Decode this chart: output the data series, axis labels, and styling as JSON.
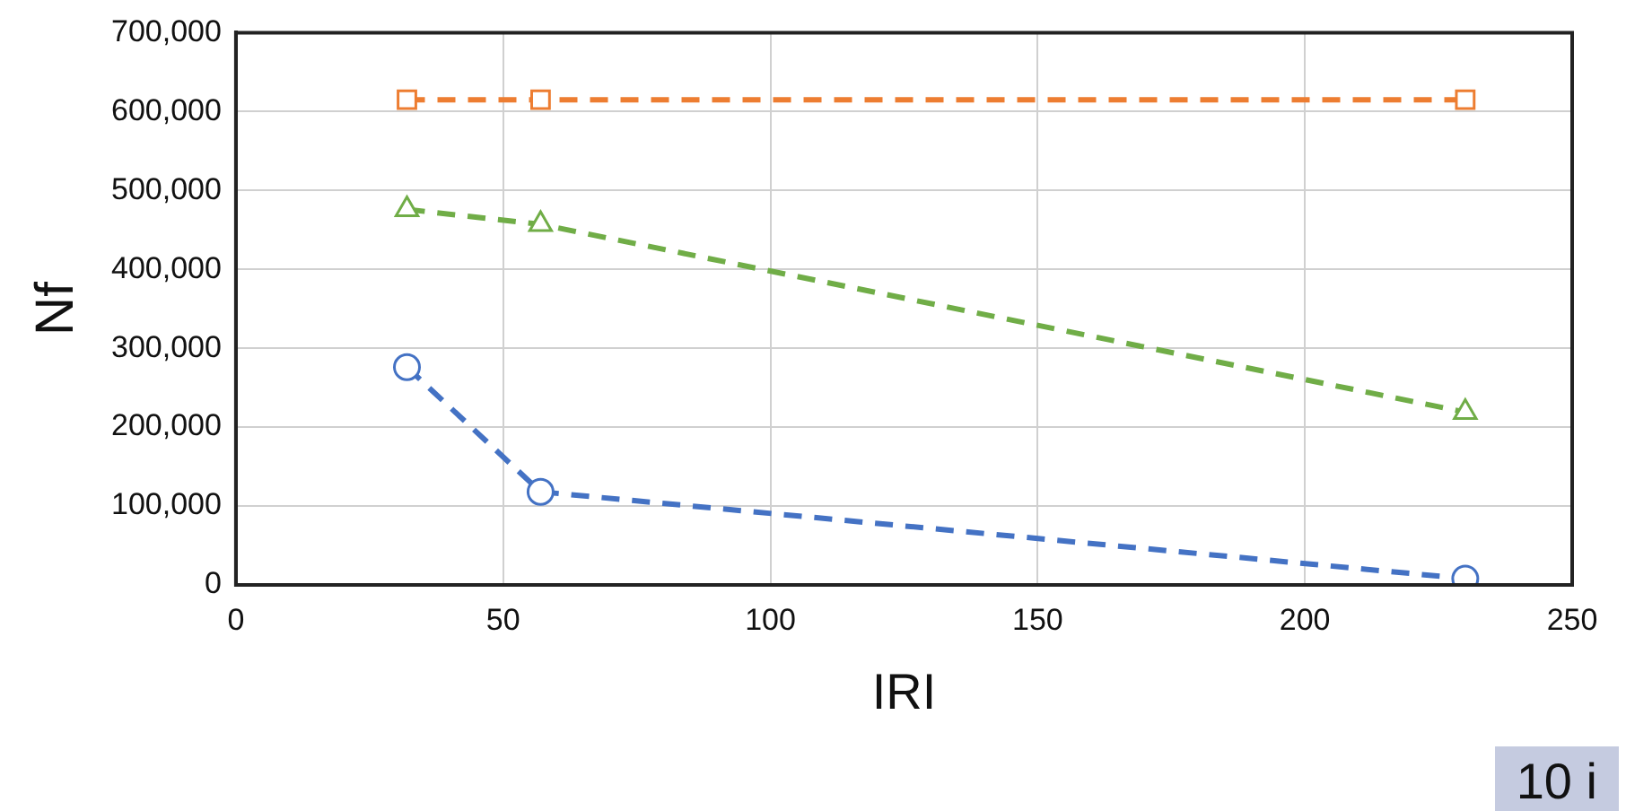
{
  "chart_data": {
    "type": "line",
    "xlabel": "IRI",
    "ylabel": "Nf",
    "xlim": [
      0,
      250
    ],
    "xticks": [
      0,
      50,
      100,
      150,
      200,
      250
    ],
    "ylim": [
      0,
      700000
    ],
    "yticks": [
      {
        "value": 0,
        "label": "0"
      },
      {
        "value": 100000,
        "label": "100,000"
      },
      {
        "value": 200000,
        "label": "200,000"
      },
      {
        "value": 300000,
        "label": "300,000"
      },
      {
        "value": 400000,
        "label": "400,000"
      },
      {
        "value": 500000,
        "label": "500,000"
      },
      {
        "value": 600000,
        "label": "600,000"
      },
      {
        "value": 700000,
        "label": "700,000"
      }
    ],
    "grid": true,
    "legend": false,
    "line_style": "dashed",
    "annotations": [
      "10 i"
    ],
    "series": [
      {
        "color": "#ed7d31",
        "marker": "square",
        "x": [
          32,
          57,
          230
        ],
        "values": [
          615000,
          615000,
          615000
        ]
      },
      {
        "color": "#70ad47",
        "marker": "triangle",
        "x": [
          32,
          57,
          230
        ],
        "values": [
          476000,
          457000,
          219000
        ]
      },
      {
        "color": "#4472c4",
        "marker": "circle",
        "x": [
          32,
          57,
          230
        ],
        "values": [
          276000,
          118000,
          8000
        ]
      }
    ]
  }
}
